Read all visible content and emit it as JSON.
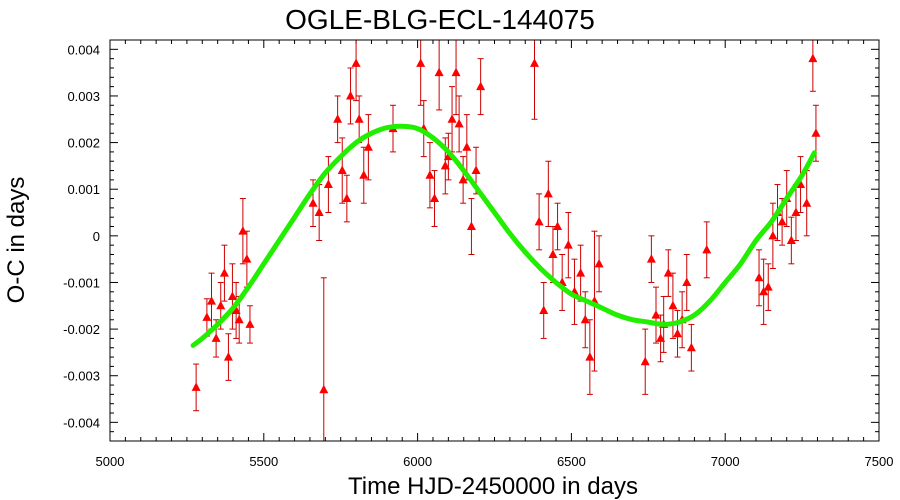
{
  "chart_data": {
    "type": "scatter",
    "title": "OGLE-BLG-ECL-144075",
    "xlabel": "Time HJD-2450000 in days",
    "ylabel": "O-C in days",
    "xlim": [
      5000,
      7500
    ],
    "ylim": [
      -0.0044,
      0.0042
    ],
    "xticks": [
      5000,
      5500,
      6000,
      6500,
      7000,
      7500
    ],
    "yticks": [
      -0.004,
      -0.003,
      -0.002,
      -0.001,
      0,
      0.001,
      0.002,
      0.003,
      0.004
    ],
    "xtick_labels": [
      "5000",
      "5500",
      "6000",
      "6500",
      "7000",
      "7500"
    ],
    "ytick_labels": [
      "-0.004",
      "-0.003",
      "-0.002",
      "-0.001",
      "0",
      "0.001",
      "0.002",
      "0.003",
      "0.004"
    ],
    "grid": false,
    "colors": {
      "points": "#ff0000",
      "errorbars": "#cc0000",
      "fit": "#22ee00"
    },
    "series": [
      {
        "kind": "points-with-errorbars",
        "x": [
          5280,
          5315,
          5330,
          5345,
          5360,
          5372,
          5385,
          5398,
          5410,
          5420,
          5432,
          5445,
          5455,
          5660,
          5680,
          5695,
          5710,
          5740,
          5755,
          5770,
          5782,
          5800,
          5810,
          5825,
          5840,
          5920,
          6010,
          6020,
          6040,
          6055,
          6070,
          6090,
          6100,
          6112,
          6125,
          6135,
          6148,
          6160,
          6175,
          6190,
          6205,
          6380,
          6395,
          6410,
          6425,
          6440,
          6455,
          6470,
          6490,
          6510,
          6530,
          6545,
          6560,
          6575,
          6590,
          6740,
          6760,
          6775,
          6790,
          6800,
          6815,
          6830,
          6845,
          6860,
          6875,
          6890,
          6940,
          7110,
          7125,
          7140,
          7155,
          7170,
          7185,
          7200,
          7215,
          7230,
          7245,
          7265,
          7285,
          7295
        ],
        "y": [
          -0.00325,
          -0.00175,
          -0.0014,
          -0.0022,
          -0.0015,
          -0.0008,
          -0.0026,
          -0.0013,
          -0.0016,
          -0.0018,
          0.0001,
          -0.0005,
          -0.0019,
          0.0007,
          0.0005,
          -0.0033,
          0.0011,
          0.0025,
          0.0014,
          0.0008,
          0.003,
          0.0037,
          0.0025,
          0.0013,
          0.0019,
          0.0023,
          0.0037,
          0.0023,
          0.0013,
          0.0008,
          0.0035,
          0.0015,
          0.0017,
          0.0025,
          0.0035,
          0.0024,
          0.0012,
          0.0019,
          0.0002,
          0.0014,
          0.0032,
          0.0037,
          0.0003,
          -0.0016,
          0.0009,
          -0.0004,
          0.0002,
          -0.001,
          -0.0002,
          -0.0012,
          -0.0008,
          -0.0018,
          -0.0026,
          -0.0014,
          -0.0006,
          -0.0027,
          -0.0005,
          -0.0017,
          -0.0022,
          -0.0019,
          -0.0008,
          -0.0015,
          -0.0021,
          -0.0018,
          -0.001,
          -0.0024,
          -0.0003,
          -0.0009,
          -0.0012,
          -0.0011,
          0.0,
          0.0005,
          0.0003,
          0.0008,
          -0.0001,
          0.0005,
          0.0011,
          0.0007,
          0.0038,
          0.0022
        ],
        "err": [
          0.0005,
          0.0004,
          0.0006,
          0.0004,
          0.0005,
          0.0006,
          0.0005,
          0.0007,
          0.0006,
          0.0005,
          0.0007,
          0.0006,
          0.0004,
          0.0005,
          0.0006,
          0.0024,
          0.0006,
          0.0005,
          0.0007,
          0.0005,
          0.0006,
          0.0008,
          0.0005,
          0.0006,
          0.0007,
          0.0005,
          0.0009,
          0.0006,
          0.0007,
          0.0006,
          0.0008,
          0.0006,
          0.0005,
          0.0007,
          0.0009,
          0.0006,
          0.0005,
          0.0007,
          0.0006,
          0.0005,
          0.0006,
          0.0012,
          0.0006,
          0.0006,
          0.0007,
          0.0006,
          0.0005,
          0.0006,
          0.0007,
          0.0007,
          0.0006,
          0.0006,
          0.0008,
          0.0015,
          0.0006,
          0.0007,
          0.0005,
          0.0006,
          0.0005,
          0.0006,
          0.0005,
          0.0007,
          0.0005,
          0.0006,
          0.0006,
          0.0005,
          0.0006,
          0.0006,
          0.0007,
          0.0005,
          0.0007,
          0.0006,
          0.0005,
          0.0006,
          0.0005,
          0.0006,
          0.0006,
          0.0007,
          0.0007,
          0.0006
        ]
      },
      {
        "kind": "fit-curve",
        "x": [
          5270,
          5300,
          5350,
          5400,
          5450,
          5500,
          5550,
          5600,
          5650,
          5700,
          5750,
          5800,
          5850,
          5900,
          5950,
          6000,
          6050,
          6100,
          6150,
          6200,
          6250,
          6300,
          6350,
          6400,
          6450,
          6500,
          6550,
          6600,
          6650,
          6700,
          6750,
          6800,
          6850,
          6900,
          6950,
          7000,
          7050,
          7100,
          7150,
          7200,
          7250,
          7290
        ],
        "y": [
          -0.00235,
          -0.0022,
          -0.0019,
          -0.00155,
          -0.0011,
          -0.0006,
          -0.0001,
          0.0004,
          0.0009,
          0.00135,
          0.0017,
          0.002,
          0.0022,
          0.00232,
          0.00235,
          0.0023,
          0.0021,
          0.0018,
          0.0014,
          0.00095,
          0.0005,
          5e-05,
          -0.00035,
          -0.0007,
          -0.001,
          -0.00125,
          -0.0014,
          -0.00155,
          -0.0017,
          -0.0018,
          -0.00185,
          -0.0019,
          -0.00185,
          -0.0017,
          -0.0014,
          -0.001,
          -0.0006,
          -0.0001,
          0.0003,
          0.0008,
          0.0013,
          0.00178
        ]
      }
    ]
  }
}
